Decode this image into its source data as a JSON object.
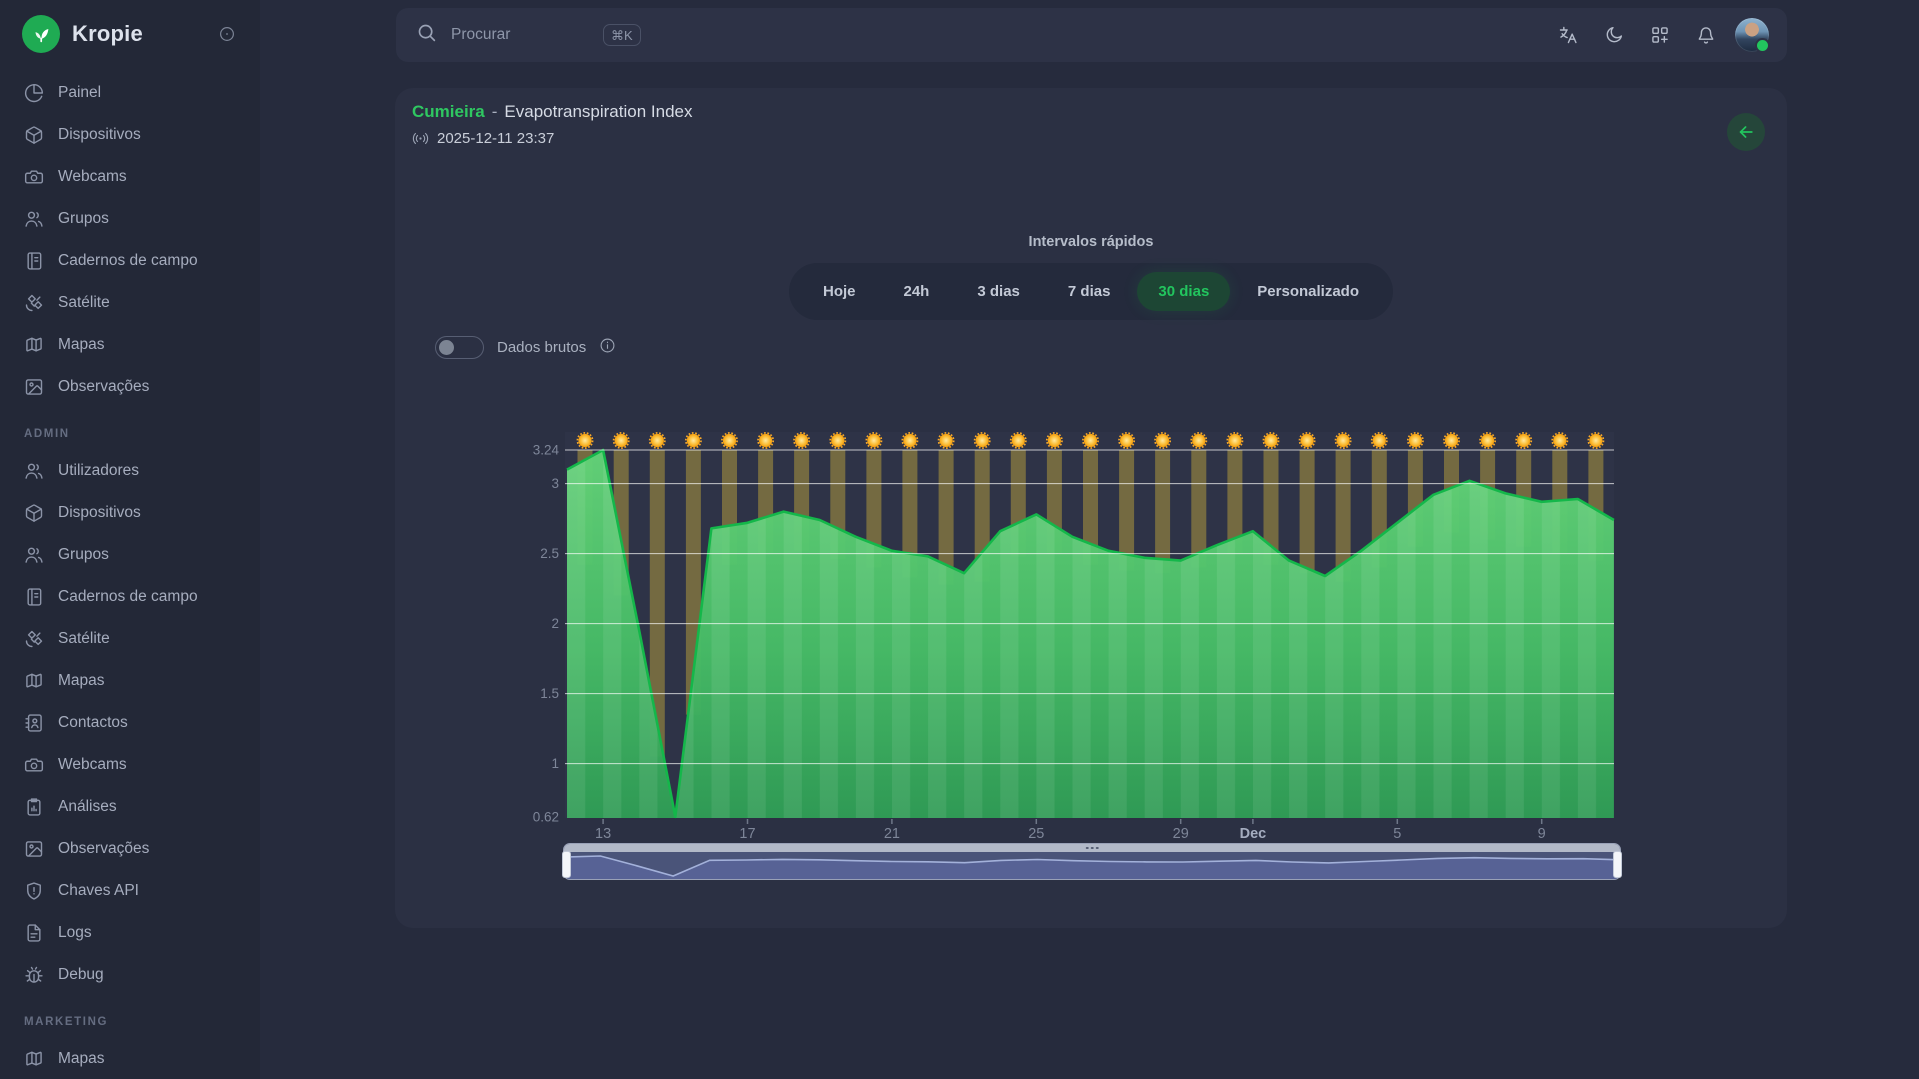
{
  "brand": {
    "name": "Kropie",
    "logo_color": "#1fab53"
  },
  "topbar": {
    "search_placeholder": "Procurar",
    "search_shortcut": "⌘K",
    "icons": [
      "languages-icon",
      "moon-icon",
      "apps-icon",
      "bell-icon"
    ],
    "avatar_status_color": "#22c55e"
  },
  "sidebar": {
    "sections": [
      {
        "label": "",
        "items": [
          {
            "icon": "pie",
            "label": "Painel"
          },
          {
            "icon": "box",
            "label": "Dispositivos"
          },
          {
            "icon": "camera",
            "label": "Webcams"
          },
          {
            "icon": "users",
            "label": "Grupos"
          },
          {
            "icon": "notebook",
            "label": "Cadernos de campo"
          },
          {
            "icon": "satellite",
            "label": "Satélite"
          },
          {
            "icon": "map",
            "label": "Mapas"
          },
          {
            "icon": "image",
            "label": "Observações"
          }
        ]
      },
      {
        "label": "ADMIN",
        "items": [
          {
            "icon": "users",
            "label": "Utilizadores"
          },
          {
            "icon": "box",
            "label": "Dispositivos"
          },
          {
            "icon": "users",
            "label": "Grupos"
          },
          {
            "icon": "notebook",
            "label": "Cadernos de campo"
          },
          {
            "icon": "satellite",
            "label": "Satélite"
          },
          {
            "icon": "map",
            "label": "Mapas"
          },
          {
            "icon": "contact",
            "label": "Contactos"
          },
          {
            "icon": "camera",
            "label": "Webcams"
          },
          {
            "icon": "clipboard",
            "label": "Análises"
          },
          {
            "icon": "image",
            "label": "Observações"
          },
          {
            "icon": "shield",
            "label": "Chaves API"
          },
          {
            "icon": "file",
            "label": "Logs"
          },
          {
            "icon": "bug",
            "label": "Debug"
          }
        ]
      },
      {
        "label": "MARKETING",
        "items": [
          {
            "icon": "map",
            "label": "Mapas"
          }
        ]
      }
    ]
  },
  "panel": {
    "station": "Cumieira",
    "separator": "-",
    "metric": "Evapotranspiration Index",
    "timestamp": "2025-12-11 23:37",
    "intervals_label": "Intervalos rápidos",
    "intervals": [
      {
        "label": "Hoje",
        "active": false
      },
      {
        "label": "24h",
        "active": false
      },
      {
        "label": "3 dias",
        "active": false
      },
      {
        "label": "7 dias",
        "active": false
      },
      {
        "label": "30 dias",
        "active": true
      },
      {
        "label": "Personalizado",
        "active": false
      }
    ],
    "raw_toggle_label": "Dados brutos",
    "raw_toggle_on": false
  },
  "chart_data": {
    "type": "area",
    "title": "Evapotranspiration Index",
    "station": "Cumieira",
    "values": [
      3.1,
      3.24,
      1.95,
      0.62,
      2.68,
      2.72,
      2.8,
      2.74,
      2.62,
      2.52,
      2.48,
      2.36,
      2.66,
      2.78,
      2.62,
      2.52,
      2.47,
      2.45,
      2.56,
      2.66,
      2.45,
      2.34,
      2.52,
      2.72,
      2.92,
      3.02,
      2.93,
      2.87,
      2.89,
      2.74
    ],
    "x_ticks": [
      {
        "label": "13",
        "index": 1,
        "bold": false
      },
      {
        "label": "17",
        "index": 5,
        "bold": false
      },
      {
        "label": "21",
        "index": 9,
        "bold": false
      },
      {
        "label": "25",
        "index": 13,
        "bold": false
      },
      {
        "label": "29",
        "index": 17,
        "bold": false
      },
      {
        "label": "Dec",
        "index": 19,
        "bold": true
      },
      {
        "label": "5",
        "index": 23,
        "bold": false
      },
      {
        "label": "9",
        "index": 27,
        "bold": false
      }
    ],
    "y_ticks": [
      {
        "label": "3.24",
        "value": 3.24
      },
      {
        "label": "3",
        "value": 3
      },
      {
        "label": "2.5",
        "value": 2.5
      },
      {
        "label": "2",
        "value": 2
      },
      {
        "label": "1.5",
        "value": 1.5
      },
      {
        "label": "1",
        "value": 1
      },
      {
        "label": "0.62",
        "value": 0.62
      }
    ],
    "ylim": [
      0.62,
      3.24
    ],
    "grid": true,
    "sun_bar_bottoms": [
      2.42,
      2.2,
      1.05,
      1.35,
      2.42,
      2.5,
      2.52,
      2.46,
      2.4,
      2.33,
      2.28,
      2.3,
      2.48,
      2.5,
      2.42,
      2.38,
      2.36,
      2.4,
      2.5,
      2.42,
      2.36,
      2.3,
      2.4,
      2.55,
      2.65,
      2.6,
      2.55,
      2.5,
      2.45
    ],
    "colors": {
      "area_top": "#63d378",
      "area_bottom": "#2f9d55",
      "line": "#14b74a",
      "bar": "#84763f",
      "sun": "#f7a829",
      "grid": "#ffffff",
      "plot_bg": "#2e3347"
    },
    "navigator": true
  }
}
